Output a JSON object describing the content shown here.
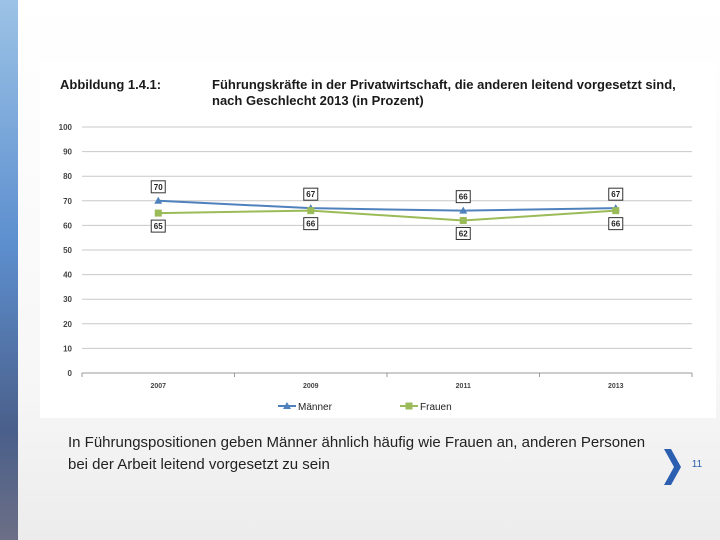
{
  "figure": {
    "label": "Abbildung 1.4.1:",
    "title": "Führungskräfte in der Privatwirtschaft, die anderen leitend vorgesetzt sind, nach Geschlecht 2013 (in Prozent)"
  },
  "chart_data": {
    "type": "line",
    "title": "",
    "xlabel": "",
    "ylabel": "",
    "categories": [
      "2007",
      "2009",
      "2011",
      "2013"
    ],
    "ylim": [
      0,
      100
    ],
    "yticks": [
      0,
      10,
      20,
      30,
      40,
      50,
      60,
      70,
      80,
      90,
      100
    ],
    "grid": true,
    "legend": "bottom",
    "series": [
      {
        "name": "Männer",
        "values": [
          70,
          67,
          66,
          67
        ],
        "color": "#4f81bd",
        "marker": "triangle",
        "label_position": "above"
      },
      {
        "name": "Frauen",
        "values": [
          65,
          66,
          62,
          66
        ],
        "color": "#9bbb59",
        "marker": "square",
        "label_position": "below"
      }
    ],
    "data_labels": true
  },
  "caption": "In Führungspositionen geben Männer ähnlich häufig wie Frauen an, anderen Personen bei der Arbeit leitend vorgesetzt zu sein",
  "page_number": "11",
  "colors": {
    "accent": "#2c5fb0",
    "grid": "#c8c8c8"
  },
  "icons": {
    "next": "chevron-right-icon"
  }
}
